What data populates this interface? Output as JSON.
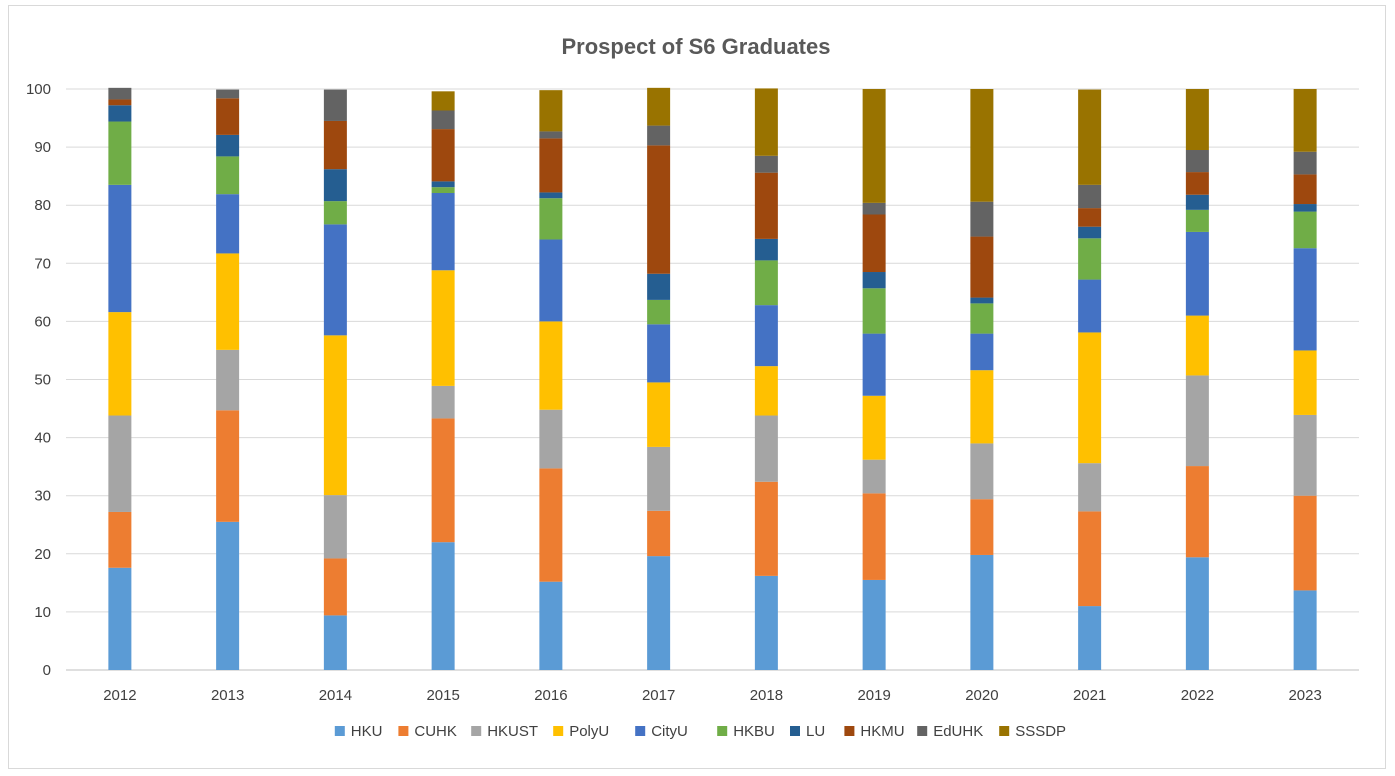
{
  "chart_data": {
    "type": "bar",
    "stacked": true,
    "title": "Prospect of S6 Graduates",
    "xlabel": "",
    "ylabel": "",
    "ylim": [
      0,
      100
    ],
    "yticks": [
      "0",
      "10",
      "20",
      "30",
      "40",
      "50",
      "60",
      "70",
      "80",
      "90",
      "100"
    ],
    "grid": true,
    "legend_position": "bottom",
    "categories": [
      "2012",
      "2013",
      "2014",
      "2015",
      "2016",
      "2017",
      "2018",
      "2019",
      "2020",
      "2021",
      "2022",
      "2023"
    ],
    "series": [
      {
        "name": "HKU",
        "color": "#5B9BD5",
        "values": [
          17.6,
          25.5,
          9.4,
          22.0,
          15.2,
          19.6,
          16.2,
          15.5,
          19.8,
          11.0,
          19.4,
          13.7
        ]
      },
      {
        "name": "CUHK",
        "color": "#ED7D31",
        "values": [
          9.6,
          19.2,
          9.8,
          21.3,
          19.5,
          7.8,
          16.2,
          14.9,
          9.6,
          16.3,
          15.7,
          16.3
        ]
      },
      {
        "name": "HKUST",
        "color": "#A5A5A5",
        "values": [
          16.6,
          10.4,
          10.9,
          5.6,
          10.1,
          11.0,
          11.4,
          5.8,
          9.6,
          8.3,
          15.6,
          13.9
        ]
      },
      {
        "name": "PolyU",
        "color": "#FFC000",
        "values": [
          17.8,
          16.6,
          27.5,
          19.9,
          15.2,
          11.1,
          8.5,
          11.0,
          12.6,
          22.5,
          10.3,
          11.1
        ]
      },
      {
        "name": "CityU",
        "color": "#4472C4",
        "values": [
          21.9,
          10.2,
          19.1,
          13.3,
          14.1,
          10.0,
          10.5,
          10.7,
          6.3,
          9.1,
          14.4,
          17.6
        ]
      },
      {
        "name": "HKBU",
        "color": "#70AD47",
        "values": [
          10.9,
          6.5,
          4.0,
          1.0,
          7.1,
          4.2,
          7.7,
          7.8,
          5.2,
          7.1,
          3.8,
          6.3
        ]
      },
      {
        "name": "LU",
        "color": "#255E91",
        "values": [
          2.8,
          3.7,
          5.5,
          1.0,
          1.0,
          4.5,
          3.7,
          2.8,
          1.0,
          2.0,
          2.6,
          1.3
        ]
      },
      {
        "name": "HKMU",
        "color": "#9E480E",
        "values": [
          1.0,
          6.3,
          8.3,
          9.0,
          9.3,
          22.1,
          11.4,
          9.9,
          10.5,
          3.2,
          3.9,
          5.1
        ]
      },
      {
        "name": "EdUHK",
        "color": "#636363",
        "values": [
          2.0,
          1.5,
          5.4,
          3.2,
          1.2,
          3.4,
          2.9,
          2.0,
          6.0,
          4.0,
          3.8,
          3.9
        ]
      },
      {
        "name": "SSSDP",
        "color": "#997300",
        "values": [
          0.0,
          0.0,
          0.0,
          3.3,
          7.1,
          6.5,
          11.6,
          19.6,
          19.4,
          16.4,
          10.5,
          10.8
        ]
      }
    ]
  }
}
